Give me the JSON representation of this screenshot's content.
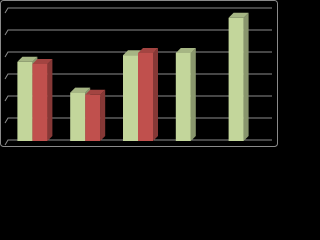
{
  "chart_data": {
    "type": "bar3d",
    "categories": [
      null,
      null,
      null,
      null,
      null
    ],
    "series": [
      {
        "color": "#c3d69b",
        "values": [
          3.6,
          2.2,
          3.9,
          4.0,
          5.6
        ]
      },
      {
        "color": "#c0504d",
        "values": [
          3.5,
          2.1,
          4.0,
          null,
          null
        ]
      }
    ],
    "ylim": [
      0,
      6
    ],
    "yticks": [
      0,
      1,
      2,
      3,
      4,
      5,
      6
    ],
    "grid": true
  }
}
